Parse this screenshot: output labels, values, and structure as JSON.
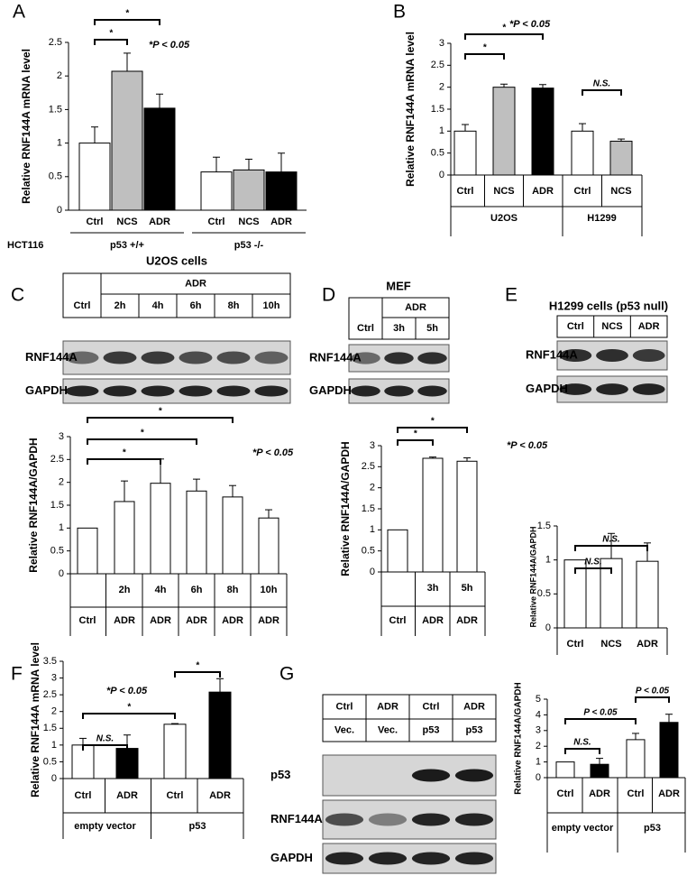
{
  "chart_data": [
    {
      "panel": "A",
      "type": "bar",
      "ylabel": "Relative RNF144A mRNA level",
      "row_label": "HCT116",
      "categories": [
        "Ctrl",
        "NCS",
        "ADR",
        "Ctrl",
        "NCS",
        "ADR"
      ],
      "groups": [
        "p53 +/+",
        "p53 -/-"
      ],
      "values": [
        1.0,
        2.07,
        1.52,
        0.57,
        0.6,
        0.57
      ],
      "errors": [
        0.24,
        0.27,
        0.21,
        0.22,
        0.16,
        0.28
      ],
      "colors": [
        "#ffffff",
        "#bfbfbf",
        "#000000",
        "#ffffff",
        "#bfbfbf",
        "#000000"
      ],
      "ylim": [
        0,
        2.5
      ],
      "yticks": [
        0,
        0.5,
        1,
        1.5,
        2,
        2.5
      ],
      "brackets": [
        "*",
        "*"
      ],
      "note": "*P < 0.05"
    },
    {
      "panel": "B",
      "type": "bar",
      "ylabel": "Relative RNF144A mRNA level",
      "categories": [
        "Ctrl",
        "NCS",
        "ADR",
        "Ctrl",
        "NCS"
      ],
      "groups": [
        "U2OS",
        "H1299"
      ],
      "values": [
        1.0,
        2.0,
        1.98,
        1.0,
        0.77
      ],
      "errors": [
        0.15,
        0.07,
        0.08,
        0.17,
        0.05
      ],
      "colors": [
        "#ffffff",
        "#bfbfbf",
        "#000000",
        "#ffffff",
        "#bfbfbf"
      ],
      "ylim": [
        0,
        3
      ],
      "yticks": [
        0,
        0.5,
        1,
        1.5,
        2,
        2.5,
        3
      ],
      "brackets": [
        "*",
        "*",
        "N.S."
      ],
      "note": "*P < 0.05"
    },
    {
      "panel": "C",
      "type": "bar",
      "ylabel": "Relative RNF144A/GAPDH",
      "categories": [
        null,
        "2h",
        "4h",
        "6h",
        "8h",
        "10h"
      ],
      "labels2": [
        "Ctrl",
        "ADR",
        "ADR",
        "ADR",
        "ADR",
        "ADR"
      ],
      "values": [
        1,
        1.58,
        1.98,
        1.81,
        1.68,
        1.22
      ],
      "errors": [
        null,
        0.45,
        0.53,
        0.26,
        0.25,
        0.18
      ],
      "colors": [
        "#ffffff",
        "#ffffff",
        "#ffffff",
        "#ffffff",
        "#ffffff",
        "#ffffff"
      ],
      "ylim": [
        0,
        3
      ],
      "yticks": [
        0,
        0.5,
        1,
        1.5,
        2,
        2.5,
        3
      ],
      "brackets": [
        "*",
        "*",
        "*"
      ],
      "note": "*P < 0.05"
    },
    {
      "panel": "D",
      "type": "bar",
      "ylabel": "Relative RNF144A/GAPDH",
      "categories": [
        null,
        "3h",
        "5h"
      ],
      "labels2": [
        "Ctrl",
        "ADR",
        "ADR"
      ],
      "values": [
        1,
        2.7,
        2.63
      ],
      "errors": [
        null,
        0.03,
        0.08
      ],
      "colors": [
        "#ffffff",
        "#ffffff",
        "#ffffff"
      ],
      "ylim": [
        0,
        3
      ],
      "yticks": [
        0,
        0.5,
        1,
        1.5,
        2,
        2.5,
        3
      ],
      "brackets": [
        "*",
        "*"
      ],
      "note": "*P < 0.05"
    },
    {
      "panel": "E",
      "type": "bar",
      "ylabel": "Relative RNF144A/GAPDH",
      "categories": [
        "Ctrl",
        "NCS",
        "ADR"
      ],
      "values": [
        1,
        1.02,
        0.98
      ],
      "errors": [
        null,
        0.37,
        0.27
      ],
      "colors": [
        "#ffffff",
        "#ffffff",
        "#ffffff"
      ],
      "ylim": [
        0,
        1.5
      ],
      "yticks": [
        0,
        0.5,
        1,
        1.5
      ],
      "brackets": [
        "N.S.",
        "N.S."
      ]
    },
    {
      "panel": "F",
      "type": "bar",
      "ylabel": "Relative RNF144A mRNA level",
      "categories": [
        "Ctrl",
        "ADR",
        "Ctrl",
        "ADR"
      ],
      "groups": [
        "empty vector",
        "p53"
      ],
      "values": [
        1.0,
        0.9,
        1.62,
        2.58
      ],
      "errors": [
        0.2,
        0.4,
        0.02,
        0.4
      ],
      "colors": [
        "#ffffff",
        "#000000",
        "#ffffff",
        "#000000"
      ],
      "ylim": [
        0,
        3.5
      ],
      "yticks": [
        0,
        0.5,
        1,
        1.5,
        2,
        2.5,
        3,
        3.5
      ],
      "brackets": [
        "*",
        "N.S.",
        "*"
      ],
      "note": "*P < 0.05"
    },
    {
      "panel": "G",
      "type": "bar",
      "ylabel": "Relative RNF144A/GAPDH",
      "categories": [
        "Ctrl",
        "ADR",
        "Ctrl",
        "ADR"
      ],
      "groups": [
        "empty vector",
        "p53"
      ],
      "values": [
        1,
        0.85,
        2.42,
        3.52
      ],
      "errors": [
        null,
        0.38,
        0.4,
        0.52
      ],
      "colors": [
        "#ffffff",
        "#000000",
        "#ffffff",
        "#000000"
      ],
      "ylim": [
        0,
        5
      ],
      "yticks": [
        0,
        1,
        2,
        3,
        4,
        5
      ],
      "brackets": [
        "P < 0.05",
        "P < 0.05",
        "N.S."
      ]
    }
  ],
  "blots": [
    {
      "title": "U2OS cells",
      "header": "ADR",
      "lanes": [
        "Ctrl",
        "2h",
        "4h",
        "6h",
        "8h",
        "10h"
      ],
      "rows": [
        "RNF144A",
        "GAPDH"
      ]
    },
    {
      "title": "MEF",
      "header": "ADR",
      "lanes": [
        "Ctrl",
        "3h",
        "5h"
      ],
      "rows": [
        "RNF144A",
        "GAPDH"
      ]
    },
    {
      "title": "H1299 cells (p53 null)",
      "lanes": [
        "Ctrl",
        "NCS",
        "ADR"
      ],
      "rows": [
        "RNF144A",
        "GAPDH"
      ]
    },
    {
      "lanes": [
        "Ctrl",
        "ADR",
        "Ctrl",
        "ADR"
      ],
      "lanes2": [
        "Vec.",
        "Vec.",
        "p53",
        "p53"
      ],
      "rows": [
        "p53",
        "RNF144A",
        "GAPDH"
      ]
    }
  ]
}
